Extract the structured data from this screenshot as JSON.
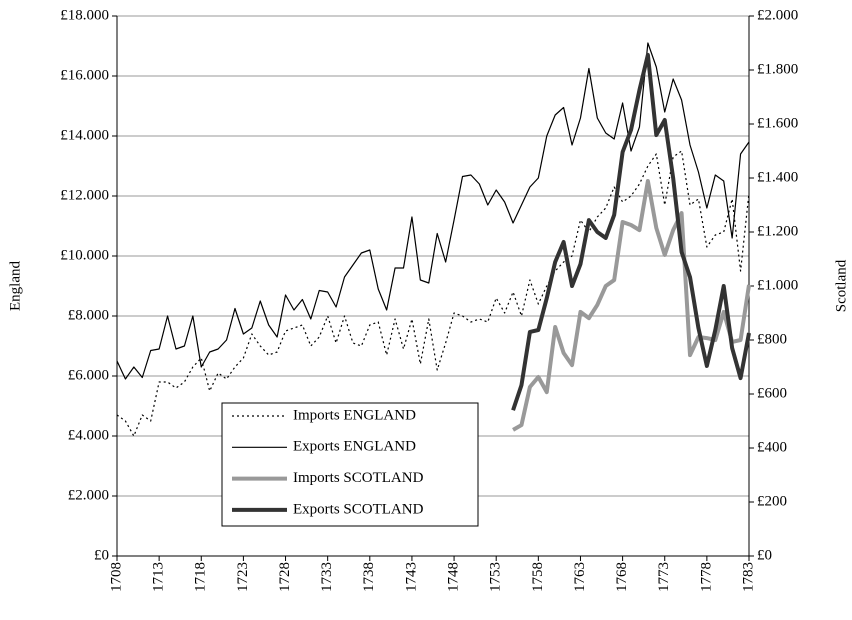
{
  "chart_data": {
    "type": "line",
    "y_label": "England",
    "y2_label": "Scotland",
    "x": [
      1708,
      1709,
      1710,
      1711,
      1712,
      1713,
      1714,
      1715,
      1716,
      1717,
      1718,
      1719,
      1720,
      1721,
      1722,
      1723,
      1724,
      1725,
      1726,
      1727,
      1728,
      1729,
      1730,
      1731,
      1732,
      1733,
      1734,
      1735,
      1736,
      1737,
      1738,
      1739,
      1740,
      1741,
      1742,
      1743,
      1744,
      1745,
      1746,
      1747,
      1748,
      1749,
      1750,
      1751,
      1752,
      1753,
      1754,
      1755,
      1756,
      1757,
      1758,
      1759,
      1760,
      1761,
      1762,
      1763,
      1764,
      1765,
      1766,
      1767,
      1768,
      1769,
      1770,
      1771,
      1772,
      1773,
      1774,
      1775,
      1776,
      1777,
      1778,
      1779,
      1780,
      1781,
      1782,
      1783
    ],
    "xlim": [
      1708,
      1783
    ],
    "xticks": [
      1708,
      1713,
      1718,
      1723,
      1728,
      1733,
      1738,
      1743,
      1748,
      1753,
      1758,
      1763,
      1768,
      1773,
      1778,
      1783
    ],
    "ylim": [
      0,
      18000
    ],
    "yticks": [
      {
        "value": 0,
        "label": "£0"
      },
      {
        "value": 2000,
        "label": "£2.000"
      },
      {
        "value": 4000,
        "label": "£4.000"
      },
      {
        "value": 6000,
        "label": "£6.000"
      },
      {
        "value": 8000,
        "label": "£8.000"
      },
      {
        "value": 10000,
        "label": "£10.000"
      },
      {
        "value": 12000,
        "label": "£12.000"
      },
      {
        "value": 14000,
        "label": "£14.000"
      },
      {
        "value": 16000,
        "label": "£16.000"
      },
      {
        "value": 18000,
        "label": "£18.000"
      }
    ],
    "y2lim": [
      0,
      2000
    ],
    "y2ticks": [
      {
        "value": 0,
        "label": "£0"
      },
      {
        "value": 200,
        "label": "£200"
      },
      {
        "value": 400,
        "label": "£400"
      },
      {
        "value": 600,
        "label": "£600"
      },
      {
        "value": 800,
        "label": "£800"
      },
      {
        "value": 1000,
        "label": "£1.000"
      },
      {
        "value": 1200,
        "label": "£1.200"
      },
      {
        "value": 1400,
        "label": "£1.400"
      },
      {
        "value": 1600,
        "label": "£1.600"
      },
      {
        "value": 1800,
        "label": "£1.800"
      },
      {
        "value": 2000,
        "label": "£2.000"
      }
    ],
    "grid": true,
    "series": [
      {
        "name": "Imports ENGLAND",
        "color": "#000000",
        "style": "dotted",
        "values": [
          4700,
          4500,
          4000,
          4700,
          4500,
          5800,
          5800,
          5600,
          5800,
          6300,
          6600,
          5500,
          6100,
          5900,
          6300,
          6600,
          7400,
          7000,
          6700,
          6800,
          7500,
          7600,
          7700,
          7000,
          7300,
          8000,
          7100,
          8000,
          7100,
          7000,
          7700,
          7800,
          6700,
          7900,
          6900,
          7900,
          6400,
          7900,
          6200,
          7100,
          8100,
          8000,
          7800,
          7900,
          7800,
          8600,
          8100,
          8800,
          8000,
          9200,
          8400,
          9000,
          9500,
          9800,
          10000,
          11200,
          10800,
          11300,
          11600,
          12300,
          11800,
          12000,
          12400,
          13000,
          13400,
          11700,
          13300,
          13500,
          11700,
          11900,
          10300,
          10700,
          10800,
          11900,
          9500,
          12100
        ]
      },
      {
        "name": "Exports ENGLAND",
        "color": "#000000",
        "style": "solid",
        "values": [
          6500,
          5900,
          6300,
          5950,
          6850,
          6900,
          8000,
          6900,
          7000,
          8000,
          6300,
          6800,
          6900,
          7200,
          8250,
          7400,
          7600,
          8500,
          7700,
          7300,
          8700,
          8200,
          8550,
          7900,
          8850,
          8800,
          8300,
          9300,
          9700,
          10100,
          10200,
          8900,
          8200,
          9600,
          9600,
          11300,
          9200,
          9100,
          10750,
          9800,
          11200,
          12650,
          12700,
          12400,
          11700,
          12200,
          11800,
          11100,
          11700,
          12300,
          12600,
          14000,
          14700,
          14950,
          13700,
          14600,
          16250,
          14600,
          14100,
          13900,
          15100,
          13500,
          14300,
          17100,
          16300,
          14800,
          15900,
          15200,
          13700,
          12800,
          11600,
          12700,
          12500,
          10600,
          13400,
          13800
        ]
      },
      {
        "name": "Imports SCOTLAND",
        "color": "#999999",
        "style": "solid",
        "axis": "y2",
        "values": [
          null,
          null,
          null,
          null,
          null,
          null,
          null,
          null,
          null,
          null,
          null,
          null,
          null,
          null,
          null,
          null,
          null,
          null,
          null,
          null,
          null,
          null,
          null,
          null,
          null,
          null,
          null,
          null,
          null,
          null,
          null,
          null,
          null,
          null,
          null,
          null,
          null,
          null,
          null,
          null,
          null,
          null,
          null,
          null,
          null,
          null,
          null,
          467,
          485,
          626,
          663,
          607,
          848,
          752,
          707,
          904,
          881,
          930,
          1000,
          1022,
          1237,
          1226,
          1207,
          1389,
          1215,
          1115,
          1207,
          1270,
          744,
          811,
          807,
          800,
          904,
          793,
          800,
          1004
        ]
      },
      {
        "name": "Exports SCOTLAND",
        "color": "#333333",
        "style": "solid",
        "axis": "y2",
        "values": [
          null,
          null,
          null,
          null,
          null,
          null,
          null,
          null,
          null,
          null,
          null,
          null,
          null,
          null,
          null,
          null,
          null,
          null,
          null,
          null,
          null,
          null,
          null,
          null,
          null,
          null,
          null,
          null,
          null,
          null,
          null,
          null,
          null,
          null,
          null,
          null,
          null,
          null,
          null,
          null,
          null,
          null,
          null,
          null,
          null,
          null,
          null,
          540,
          633,
          830,
          837,
          955,
          1089,
          1163,
          1000,
          1081,
          1244,
          1200,
          1178,
          1263,
          1496,
          1578,
          1726,
          1856,
          1559,
          1615,
          1400,
          1126,
          1033,
          844,
          704,
          837,
          1000,
          770,
          659,
          826
        ]
      }
    ]
  }
}
